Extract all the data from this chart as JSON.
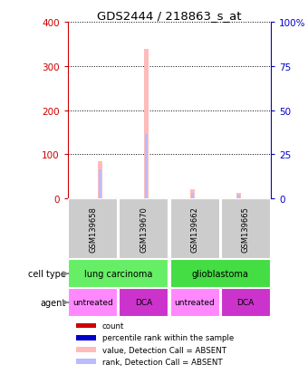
{
  "title": "GDS2444 / 218863_s_at",
  "samples": [
    "GSM139658",
    "GSM139670",
    "GSM139662",
    "GSM139665"
  ],
  "cell_types": [
    [
      "lung carcinoma",
      2
    ],
    [
      "glioblastoma",
      2
    ]
  ],
  "agents": [
    "untreated",
    "DCA",
    "untreated",
    "DCA"
  ],
  "bar_data": {
    "value_absent": [
      85,
      338,
      20,
      12
    ],
    "rank_absent": [
      65,
      145,
      13,
      9
    ]
  },
  "ylim_left": [
    0,
    400
  ],
  "ylim_right": [
    0,
    100
  ],
  "yticks_left": [
    0,
    100,
    200,
    300,
    400
  ],
  "yticks_right": [
    0,
    25,
    50,
    75,
    100
  ],
  "colors": {
    "value_absent": "#ffbbbb",
    "rank_absent": "#bbbbff",
    "cell_type_lung": "#66ee66",
    "cell_type_glio": "#44dd44",
    "agent_untreated": "#ff88ff",
    "agent_dca": "#cc33cc",
    "sample_bg": "#cccccc",
    "axis_left": "#cc0000",
    "axis_right": "#0000cc"
  },
  "bar_width": 0.08,
  "legend": [
    {
      "label": "count",
      "color": "#cc0000"
    },
    {
      "label": "percentile rank within the sample",
      "color": "#0000cc"
    },
    {
      "label": "value, Detection Call = ABSENT",
      "color": "#ffbbbb"
    },
    {
      "label": "rank, Detection Call = ABSENT",
      "color": "#bbbbff"
    }
  ]
}
